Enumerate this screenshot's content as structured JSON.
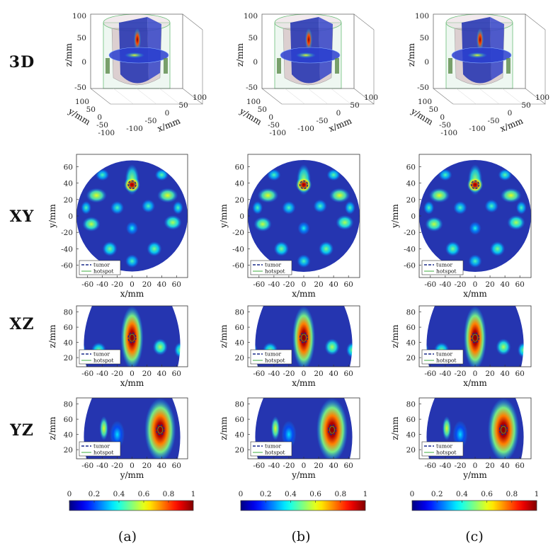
{
  "figure": {
    "row_labels": [
      "3D",
      "XY",
      "XZ",
      "YZ"
    ],
    "panel_labels": [
      "(a)",
      "(b)",
      "(c)"
    ],
    "legend": {
      "tumor": "tumor",
      "hotspot": "hotspot"
    },
    "colors": {
      "field_background": "#2535b0",
      "tumor_line": "#1a2a8a",
      "hotspot_line": "#3fae3f"
    },
    "colormap_name": "jet",
    "colorbar": {
      "range": [
        0,
        1
      ],
      "ticks": [
        "0",
        "0.2",
        "0.4",
        "0.6",
        "0.8",
        "1"
      ]
    }
  },
  "chart_data": [
    {
      "type": "3d-volume",
      "row": "3D",
      "xlabel": "x/mm",
      "ylabel": "y/mm",
      "zlabel": "z/mm",
      "x_ticks": [
        "-100",
        "-50",
        "0",
        "50",
        "100"
      ],
      "y_ticks": [
        "100",
        "50",
        "0",
        "-50",
        "-100"
      ],
      "z_ticks": [
        "100",
        "50",
        "0",
        "-50"
      ]
    },
    {
      "type": "heatmap",
      "row": "XY",
      "xlabel": "x/mm",
      "ylabel": "y/mm",
      "xlim": [
        -75,
        75
      ],
      "ylim": [
        -75,
        75
      ],
      "x_ticks": [
        "-60",
        "-40",
        "-20",
        "0",
        "20",
        "40",
        "60"
      ],
      "y_ticks": [
        "60",
        "40",
        "20",
        "0",
        "-20",
        "-40",
        "-60"
      ],
      "tumor_center": [
        0,
        38
      ],
      "tumor_radius_mm": 5
    },
    {
      "type": "heatmap",
      "row": "XZ",
      "xlabel": "x/mm",
      "ylabel": "z/mm",
      "xlim": [
        -75,
        75
      ],
      "ylim": [
        8,
        88
      ],
      "x_ticks": [
        "-60",
        "-40",
        "-20",
        "0",
        "20",
        "40",
        "60"
      ],
      "y_ticks": [
        "80",
        "60",
        "40",
        "20"
      ],
      "tumor_center": [
        0,
        46
      ]
    },
    {
      "type": "heatmap",
      "row": "YZ",
      "xlabel": "y/mm",
      "ylabel": "z/mm",
      "xlim": [
        -75,
        75
      ],
      "ylim": [
        8,
        88
      ],
      "x_ticks": [
        "-60",
        "-40",
        "-20",
        "0",
        "20",
        "40",
        "60"
      ],
      "y_ticks": [
        "80",
        "60",
        "40",
        "20"
      ],
      "tumor_center": [
        38,
        46
      ]
    }
  ]
}
